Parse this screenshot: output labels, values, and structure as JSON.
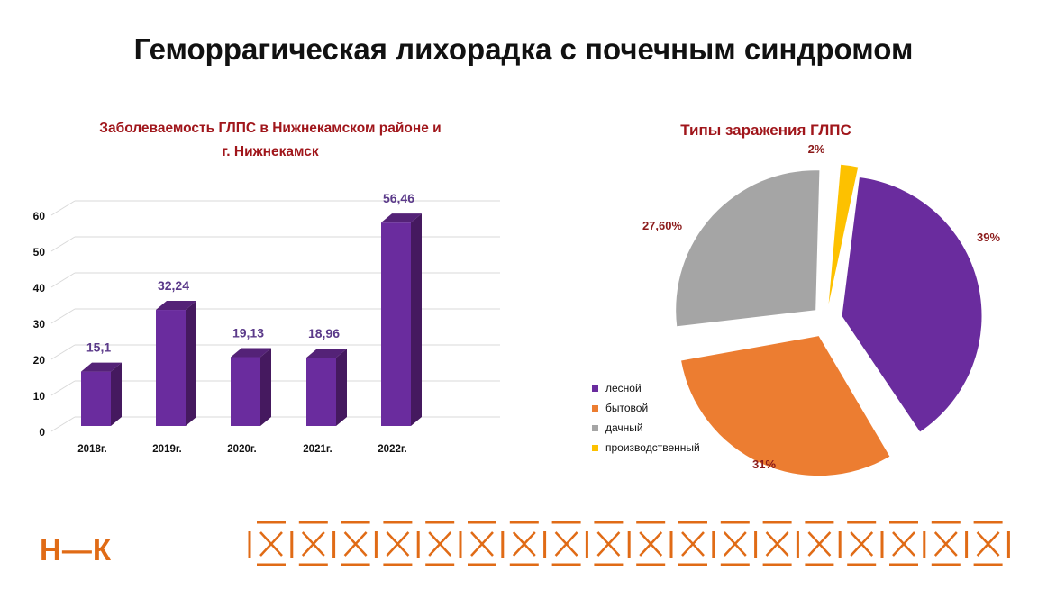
{
  "title": "Геморрагическая лихорадка с почечным синдромом",
  "logo": "Н—К",
  "chart_data": [
    {
      "type": "bar",
      "title": "Заболеваемость ГЛПС в Нижнекамском районе и г. Нижнекамск",
      "title_lines": [
        "Заболеваемость ГЛПС в Нижнекамском районе и",
        "г. Нижнекамск"
      ],
      "categories": [
        "2018г.",
        "2019г.",
        "2020г.",
        "2021г.",
        "2022г."
      ],
      "values": [
        15.1,
        32.24,
        19.13,
        18.96,
        56.46
      ],
      "data_labels": [
        "15,1",
        "32,24",
        "19,13",
        "18,96",
        "56,46"
      ],
      "yticks": [
        0,
        10,
        20,
        30,
        40,
        50,
        60
      ],
      "ylim": [
        0,
        60
      ],
      "grid": true,
      "style": "3d",
      "color": "#6a2c9e"
    },
    {
      "type": "pie",
      "title": "Типы заражения ГЛПС",
      "exploded": true,
      "legend_position": "left",
      "slices": [
        {
          "name": "лесной",
          "value": 39,
          "label": "39%",
          "color": "#6a2c9e"
        },
        {
          "name": "бытовой",
          "value": 31,
          "label": "31%",
          "color": "#ec7d31"
        },
        {
          "name": "дачный",
          "value": 27.6,
          "label": "27,60%",
          "color": "#a5a5a5"
        },
        {
          "name": "производственный",
          "value": 2,
          "label": "2%",
          "color": "#fdc100"
        }
      ]
    }
  ],
  "colors": {
    "accent": "#e06b16",
    "label": "#a0161b"
  }
}
